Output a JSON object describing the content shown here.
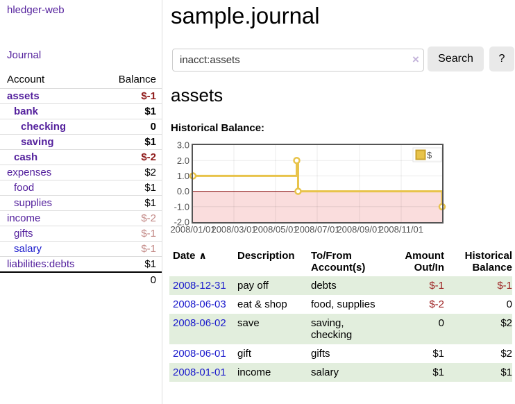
{
  "app": {
    "brand": "hledger-web",
    "journal_link": "Journal"
  },
  "colors": {
    "link_purple": "#54219d",
    "link_blue": "#1a1acc",
    "negative_strong": "#8f1a1a",
    "negative_muted": "#c28885",
    "table_row_green": "#e2eedd",
    "chart_line_yellow": "#e8c34a",
    "chart_negative_fill": "#fadddd",
    "chart_zero_line": "#8b1a1a",
    "button_gray": "#e9e9e9"
  },
  "sidebar": {
    "account_col": "Account",
    "balance_col": "Balance",
    "accounts": [
      {
        "name": "assets",
        "indent": 1,
        "bold": true,
        "balance": "$-1",
        "tone": "negative"
      },
      {
        "name": "bank",
        "indent": 2,
        "bold": true,
        "balance": "$1",
        "tone": "normal"
      },
      {
        "name": "checking",
        "indent": 3,
        "bold": true,
        "balance": "0",
        "tone": "normal"
      },
      {
        "name": "saving",
        "indent": 3,
        "bold": true,
        "balance": "$1",
        "tone": "normal"
      },
      {
        "name": "cash",
        "indent": 2,
        "bold": true,
        "balance": "$-2",
        "tone": "negative"
      },
      {
        "name": "expenses",
        "indent": 1,
        "bold": false,
        "balance": "$2",
        "tone": "normal"
      },
      {
        "name": "food",
        "indent": 2,
        "bold": false,
        "balance": "$1",
        "tone": "normal"
      },
      {
        "name": "supplies",
        "indent": 2,
        "bold": false,
        "balance": "$1",
        "tone": "normal"
      },
      {
        "name": "income",
        "indent": 1,
        "bold": false,
        "balance": "$-2",
        "tone": "negative-muted"
      },
      {
        "name": "gifts",
        "indent": 2,
        "bold": false,
        "balance": "$-1",
        "tone": "negative-muted"
      },
      {
        "name": "salary",
        "indent": 2,
        "bold": false,
        "link_color": "blue",
        "balance": "$-1",
        "tone": "negative-muted"
      },
      {
        "name": "liabilities:debts",
        "indent": 1,
        "bold": false,
        "balance": "$1",
        "tone": "normal"
      }
    ],
    "total": "0"
  },
  "main": {
    "title": "sample.journal",
    "search_value": "inacct:assets",
    "clear_icon": "×",
    "search_button": "Search",
    "help_button": "?",
    "heading": "assets",
    "chart_heading": "Historical Balance:"
  },
  "chart_data": {
    "type": "line",
    "step": true,
    "title": "Historical Balance:",
    "series": [
      {
        "name": "$",
        "color": "#e8c34a",
        "points": [
          {
            "x": "2008-01-01",
            "y": 1
          },
          {
            "x": "2008-06-01",
            "y": 2
          },
          {
            "x": "2008-06-03",
            "y": 0
          },
          {
            "x": "2008-12-31",
            "y": -1
          }
        ]
      }
    ],
    "x_range": [
      "2008-01-01",
      "2008-12-31"
    ],
    "ylim": [
      -2,
      3
    ],
    "yticks": [
      "3.0",
      "2.0",
      "1.0",
      "0.0",
      "-1.0",
      "-2.0"
    ],
    "xticks": [
      "2008/01/01",
      "2008/03/01",
      "2008/05/01",
      "2008/07/01",
      "2008/09/01",
      "2008/11/01"
    ],
    "legend": "$",
    "legend_position": "top-right",
    "grid": true,
    "negative_region_color": "#fadddd",
    "zero_line_color": "#8b1a1a",
    "border_color": "#545454"
  },
  "register": {
    "columns": [
      {
        "label": "Date",
        "align": "left"
      },
      {
        "label": "Description",
        "align": "left"
      },
      {
        "label": "To/From Account(s)",
        "align": "left"
      },
      {
        "label": "Amount Out/In",
        "align": "right"
      },
      {
        "label": "Historical Balance",
        "align": "right"
      }
    ],
    "sort_arrow": "∧",
    "rows": [
      {
        "date": "2008-12-31",
        "description": "pay off",
        "accounts": "debts",
        "amount": "$-1",
        "amount_tone": "negative",
        "balance": "$-1",
        "balance_tone": "negative"
      },
      {
        "date": "2008-06-03",
        "description": "eat & shop",
        "accounts": "food, supplies",
        "amount": "$-2",
        "amount_tone": "negative",
        "balance": "0",
        "balance_tone": "normal"
      },
      {
        "date": "2008-06-02",
        "description": "save",
        "accounts": "saving, checking",
        "amount": "0",
        "amount_tone": "normal",
        "balance": "$2",
        "balance_tone": "normal"
      },
      {
        "date": "2008-06-01",
        "description": "gift",
        "accounts": "gifts",
        "amount": "$1",
        "amount_tone": "normal",
        "balance": "$2",
        "balance_tone": "normal"
      },
      {
        "date": "2008-01-01",
        "description": "income",
        "accounts": "salary",
        "amount": "$1",
        "amount_tone": "normal",
        "balance": "$1",
        "balance_tone": "normal"
      }
    ]
  }
}
